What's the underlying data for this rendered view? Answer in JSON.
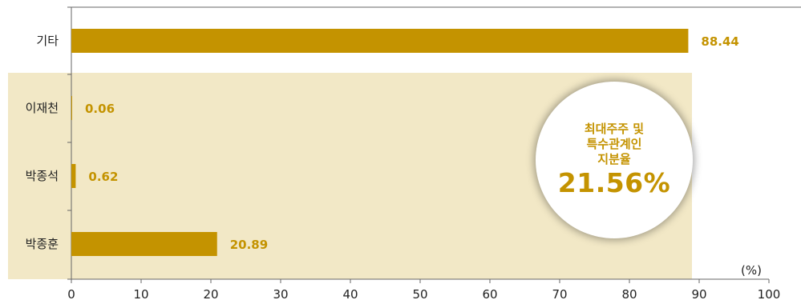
{
  "chart_data": {
    "type": "bar",
    "orientation": "horizontal",
    "categories": [
      "기타",
      "이재천",
      "박종석",
      "박종훈"
    ],
    "values": [
      88.44,
      0.06,
      0.62,
      20.89
    ],
    "value_labels": [
      "88.44",
      "0.06",
      "0.62",
      "20.89"
    ],
    "xlim": [
      0,
      100
    ],
    "xticks": [
      0,
      10,
      20,
      30,
      40,
      50,
      60,
      70,
      80,
      90,
      100
    ],
    "unit": "(%)",
    "grid": false,
    "highlight_group": [
      "이재천",
      "박종석",
      "박종훈"
    ]
  },
  "callout": {
    "line1": "최대주주 및",
    "line2": "특수관계인",
    "line3": "지분율",
    "value": "21.56%"
  },
  "colors": {
    "bar": "#C49300",
    "value_text": "#C49300",
    "highlight_bg": "#F2E8C6",
    "axis": "#666666",
    "callout_text": "#C49300"
  }
}
